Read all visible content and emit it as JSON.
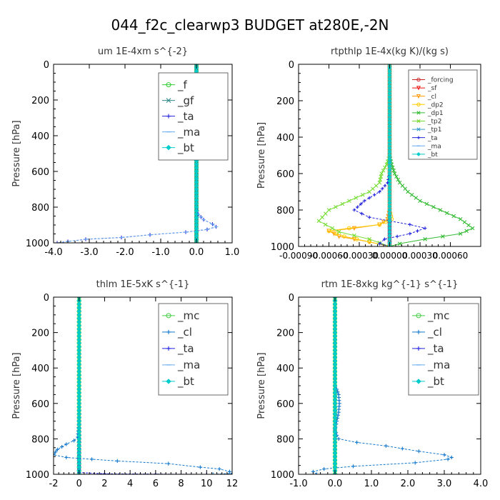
{
  "figure_title": "044_f2c_clearwp3  BUDGET at280E,-2N",
  "colors": {
    "forcing": "#cc2222",
    "sf": "#ee1111",
    "cl_orange": "#ff9900",
    "dp2": "#ffcc00",
    "dp1": "#33bb33",
    "tp2": "#77dd33",
    "tp1": "#3399cc",
    "ta": "#2222dd",
    "ma": "#66aaee",
    "bt": "#00cccc",
    "f": "#33cc33",
    "gf": "#338888",
    "mc": "#44cc44",
    "cl": "#1177cc"
  },
  "chart_data": [
    {
      "type": "line",
      "title": "um   1E-4xm s^{-2}",
      "ylabel": "Pressure [hPa]",
      "xlim": [
        -4.0,
        1.0
      ],
      "ylim": [
        1000,
        0
      ],
      "xticks": [
        -4.0,
        -3.0,
        -2.0,
        -1.0,
        0.0,
        1.0
      ],
      "xtick_labels": [
        "-4.0",
        "-3.0",
        "-2.0",
        "-1.0",
        "0.0",
        "1.0"
      ],
      "yticks": [
        0,
        200,
        400,
        600,
        800,
        1000
      ],
      "ytick_labels": [
        "0",
        "200",
        "400",
        "600",
        "800",
        "1000"
      ],
      "legend": "top-right",
      "series": [
        {
          "name": "_f",
          "color": "#33cc33",
          "marker": "circle",
          "x": [
            0,
            0,
            0,
            0,
            0,
            0,
            0,
            0,
            0,
            0,
            0
          ],
          "y": [
            0,
            100,
            200,
            300,
            400,
            500,
            600,
            700,
            800,
            900,
            1000
          ]
        },
        {
          "name": "_gf",
          "color": "#338888",
          "marker": "cross",
          "x": [
            0,
            0,
            0,
            0,
            0,
            0,
            0,
            0,
            0,
            0,
            0
          ],
          "y": [
            0,
            100,
            200,
            300,
            400,
            500,
            600,
            700,
            800,
            900,
            1000
          ]
        },
        {
          "name": "_ta",
          "color": "#2222dd",
          "marker": "plus",
          "x": [
            0,
            0,
            0,
            0,
            0.05,
            0.2,
            0.45,
            0.55,
            0.3,
            -0.3,
            -1.3,
            -2.1,
            -3.1,
            -3.6,
            -3.9
          ],
          "y": [
            0,
            300,
            600,
            800,
            840,
            870,
            895,
            910,
            925,
            940,
            955,
            970,
            980,
            992,
            1000
          ]
        },
        {
          "name": "_ma",
          "color": "#66aaee",
          "marker": "dash",
          "x": [
            0,
            0,
            0,
            0,
            0.05,
            0.2,
            0.45,
            0.55,
            0.3,
            -0.3,
            -1.3,
            -2.1,
            -3.1,
            -3.6,
            -3.9
          ],
          "y": [
            0,
            300,
            600,
            800,
            840,
            870,
            895,
            910,
            925,
            940,
            955,
            970,
            980,
            992,
            1000
          ]
        },
        {
          "name": "_bt",
          "color": "#00cccc",
          "marker": "diamond",
          "x": [
            0,
            0,
            0,
            0,
            0,
            0,
            0,
            0,
            0,
            0,
            0
          ],
          "y": [
            0,
            100,
            200,
            300,
            400,
            500,
            600,
            700,
            800,
            900,
            1000
          ]
        }
      ]
    },
    {
      "type": "line",
      "title": "rtpthlp   1E-4x(kg K)/(kg s)",
      "ylabel": "Pressure [hPa]",
      "xlim": [
        -0.0009,
        0.0009
      ],
      "ylim": [
        1000,
        0
      ],
      "xticks": [
        -0.0009,
        -0.0006,
        -0.0003,
        0.0,
        0.0003,
        0.0006
      ],
      "xtick_labels": [
        "-0.00090",
        "-0.00060",
        "-0.00030",
        "0.00000",
        "0.00030",
        "0.00060"
      ],
      "yticks": [
        0,
        200,
        400,
        600,
        800,
        1000
      ],
      "ytick_labels": [
        "0",
        "200",
        "400",
        "600",
        "800",
        "1000"
      ],
      "legend": "top-right",
      "series": [
        {
          "name": "_forcing",
          "color": "#cc2222",
          "marker": "circle",
          "x": [
            0,
            0,
            0,
            0,
            0,
            0,
            0,
            0,
            0,
            0,
            0
          ],
          "y": [
            0,
            100,
            200,
            300,
            400,
            500,
            600,
            700,
            800,
            900,
            1000
          ]
        },
        {
          "name": "_sf",
          "color": "#ee1111",
          "marker": "triangle",
          "x": [
            0,
            0,
            0,
            0,
            0,
            0,
            0,
            0,
            0,
            0,
            0
          ],
          "y": [
            0,
            100,
            200,
            300,
            400,
            500,
            600,
            700,
            800,
            900,
            1000
          ]
        },
        {
          "name": "_cl",
          "color": "#ff9900",
          "marker": "triangle",
          "x": [
            0,
            0,
            0,
            0,
            -2e-05,
            -0.0001,
            -0.00035,
            -0.0006,
            -0.0005,
            -0.0002,
            0
          ],
          "y": [
            0,
            300,
            600,
            800,
            850,
            880,
            900,
            915,
            945,
            975,
            1000
          ]
        },
        {
          "name": "_dp2",
          "color": "#ffcc00",
          "marker": "circle",
          "x": [
            0,
            0,
            0,
            0,
            2e-05,
            -0.0001,
            -0.0004,
            -0.0006,
            -0.00045,
            -0.0002,
            0
          ],
          "y": [
            0,
            300,
            600,
            800,
            850,
            880,
            900,
            915,
            945,
            975,
            1000
          ]
        },
        {
          "name": "_dp1",
          "color": "#33bb33",
          "marker": "cross",
          "x": [
            0,
            0,
            2e-05,
            5e-05,
            0.0001,
            0.00018,
            0.0003,
            0.0005,
            0.0007,
            0.00082,
            0.0007,
            0.00035,
            0.0001,
            0
          ],
          "y": [
            0,
            500,
            550,
            600,
            650,
            700,
            750,
            800,
            850,
            900,
            930,
            960,
            985,
            1000
          ]
        },
        {
          "name": "_tp2",
          "color": "#77dd33",
          "marker": "cross",
          "x": [
            0,
            0,
            -3e-05,
            -8e-05,
            -0.0001,
            -0.0002,
            -0.0004,
            -0.0006,
            -0.0007,
            -0.0005,
            -0.0002,
            0
          ],
          "y": [
            0,
            500,
            550,
            600,
            650,
            700,
            750,
            800,
            860,
            920,
            960,
            1000
          ]
        },
        {
          "name": "_tp1",
          "color": "#3399cc",
          "marker": "cross",
          "x": [
            0,
            0,
            0,
            0,
            0,
            0,
            0,
            0,
            0,
            0,
            0
          ],
          "y": [
            0,
            100,
            200,
            300,
            400,
            500,
            600,
            700,
            800,
            900,
            1000
          ]
        },
        {
          "name": "_ta",
          "color": "#2222dd",
          "marker": "plus",
          "x": [
            0,
            0,
            -2e-05,
            -0.0001,
            -0.00025,
            -0.00035,
            -0.0002,
            0.0002,
            0.00035,
            0.0002,
            -5e-05,
            -0.0001,
            0
          ],
          "y": [
            0,
            600,
            650,
            700,
            750,
            800,
            840,
            880,
            900,
            930,
            960,
            985,
            1000
          ]
        },
        {
          "name": "_ma",
          "color": "#66aaee",
          "marker": "dash",
          "x": [
            0,
            0,
            0,
            0,
            0,
            0,
            0,
            0,
            0,
            0,
            0
          ],
          "y": [
            0,
            100,
            200,
            300,
            400,
            500,
            600,
            700,
            800,
            900,
            1000
          ]
        },
        {
          "name": "_bt",
          "color": "#00cccc",
          "marker": "diamond",
          "x": [
            0,
            0,
            0,
            0,
            0,
            0,
            0,
            0,
            0,
            0,
            0
          ],
          "y": [
            0,
            100,
            200,
            300,
            400,
            500,
            600,
            700,
            800,
            900,
            1000
          ]
        }
      ]
    },
    {
      "type": "line",
      "title": "thlm   1E-5xK s^{-1}",
      "ylabel": "Pressure [hPa]",
      "xlim": [
        -2,
        12
      ],
      "ylim": [
        1000,
        0
      ],
      "xticks": [
        -2,
        0,
        2,
        4,
        6,
        8,
        10,
        12
      ],
      "xtick_labels": [
        "-2",
        "0",
        "2",
        "4",
        "6",
        "8",
        "10",
        "12"
      ],
      "yticks": [
        0,
        200,
        400,
        600,
        800,
        1000
      ],
      "ytick_labels": [
        "0",
        "200",
        "400",
        "600",
        "800",
        "1000"
      ],
      "legend": "top-right",
      "series": [
        {
          "name": "_mc",
          "color": "#44cc44",
          "marker": "circle",
          "x": [
            0,
            0,
            0,
            0,
            0,
            0,
            0,
            0,
            0,
            0,
            0
          ],
          "y": [
            0,
            100,
            200,
            300,
            400,
            500,
            600,
            700,
            800,
            900,
            1000
          ]
        },
        {
          "name": "_cl",
          "color": "#1177cc",
          "marker": "plus",
          "x": [
            0,
            0,
            0,
            -0.1,
            -0.4,
            -1.0,
            -1.7,
            -2.0,
            -1.0,
            1.0,
            3.0,
            7.0,
            9.5,
            11.0,
            11.8,
            12.0,
            10.5
          ],
          "y": [
            0,
            300,
            700,
            790,
            810,
            830,
            860,
            890,
            905,
            915,
            925,
            940,
            960,
            970,
            985,
            995,
            1000
          ]
        },
        {
          "name": "_ta",
          "color": "#2222dd",
          "marker": "plus",
          "x": [
            0,
            0,
            0,
            2,
            6,
            10,
            12
          ],
          "y": [
            0,
            500,
            990,
            997,
            999,
            1000,
            1000
          ]
        },
        {
          "name": "_ma",
          "color": "#66aaee",
          "marker": "dash",
          "x": [
            0,
            0,
            0,
            0,
            0,
            0,
            0,
            0,
            0,
            0,
            0
          ],
          "y": [
            0,
            100,
            200,
            300,
            400,
            500,
            600,
            700,
            800,
            900,
            1000
          ]
        },
        {
          "name": "_bt",
          "color": "#00cccc",
          "marker": "diamond",
          "x": [
            0,
            0,
            0,
            0,
            0,
            0,
            0,
            0,
            0,
            0,
            0
          ],
          "y": [
            0,
            100,
            200,
            300,
            400,
            500,
            600,
            700,
            800,
            900,
            1000
          ]
        }
      ]
    },
    {
      "type": "line",
      "title": "rtm   1E-8xkg kg^{-1} s^{-1}",
      "ylabel": "Pressure [hPa]",
      "xlim": [
        -1.0,
        4.0
      ],
      "ylim": [
        1000,
        0
      ],
      "xticks": [
        -1.0,
        0.0,
        1.0,
        2.0,
        3.0,
        4.0
      ],
      "xtick_labels": [
        "-1.0",
        "0.0",
        "1.0",
        "2.0",
        "3.0",
        "4.0"
      ],
      "yticks": [
        0,
        200,
        400,
        600,
        800,
        1000
      ],
      "ytick_labels": [
        "0",
        "200",
        "400",
        "600",
        "800",
        "1000"
      ],
      "legend": "top-right",
      "series": [
        {
          "name": "_mc",
          "color": "#44cc44",
          "marker": "circle",
          "x": [
            0,
            0,
            0,
            0,
            0,
            0,
            0,
            0,
            0,
            0,
            0
          ],
          "y": [
            0,
            100,
            200,
            300,
            400,
            500,
            600,
            700,
            800,
            900,
            1000
          ]
        },
        {
          "name": "_cl",
          "color": "#1177cc",
          "marker": "plus",
          "x": [
            0,
            0,
            0,
            0.05,
            0.1,
            0.12,
            0.1,
            0.05,
            0.0,
            0.05,
            0.1,
            0.6,
            1.4,
            2.3,
            3.0,
            3.2,
            3.1,
            2.2,
            0.5,
            -0.3,
            -0.6,
            -0.5
          ],
          "y": [
            0,
            400,
            500,
            520,
            550,
            600,
            650,
            700,
            750,
            780,
            800,
            820,
            840,
            870,
            890,
            905,
            915,
            935,
            955,
            970,
            985,
            1000
          ]
        },
        {
          "name": "_ta",
          "color": "#2222dd",
          "marker": "plus",
          "x": [
            0,
            0,
            0,
            0,
            0,
            0,
            0,
            0,
            0,
            0,
            0
          ],
          "y": [
            0,
            100,
            200,
            300,
            400,
            500,
            600,
            700,
            800,
            900,
            1000
          ]
        },
        {
          "name": "_ma",
          "color": "#66aaee",
          "marker": "dash",
          "x": [
            0,
            0,
            0,
            0,
            0,
            0,
            0,
            0,
            0,
            0,
            0
          ],
          "y": [
            0,
            100,
            200,
            300,
            400,
            500,
            600,
            700,
            800,
            900,
            1000
          ]
        },
        {
          "name": "_bt",
          "color": "#00cccc",
          "marker": "diamond",
          "x": [
            0,
            0,
            0,
            0,
            0,
            0,
            0,
            0,
            0,
            0,
            0
          ],
          "y": [
            0,
            100,
            200,
            300,
            400,
            500,
            600,
            700,
            800,
            900,
            1000
          ]
        }
      ]
    }
  ]
}
